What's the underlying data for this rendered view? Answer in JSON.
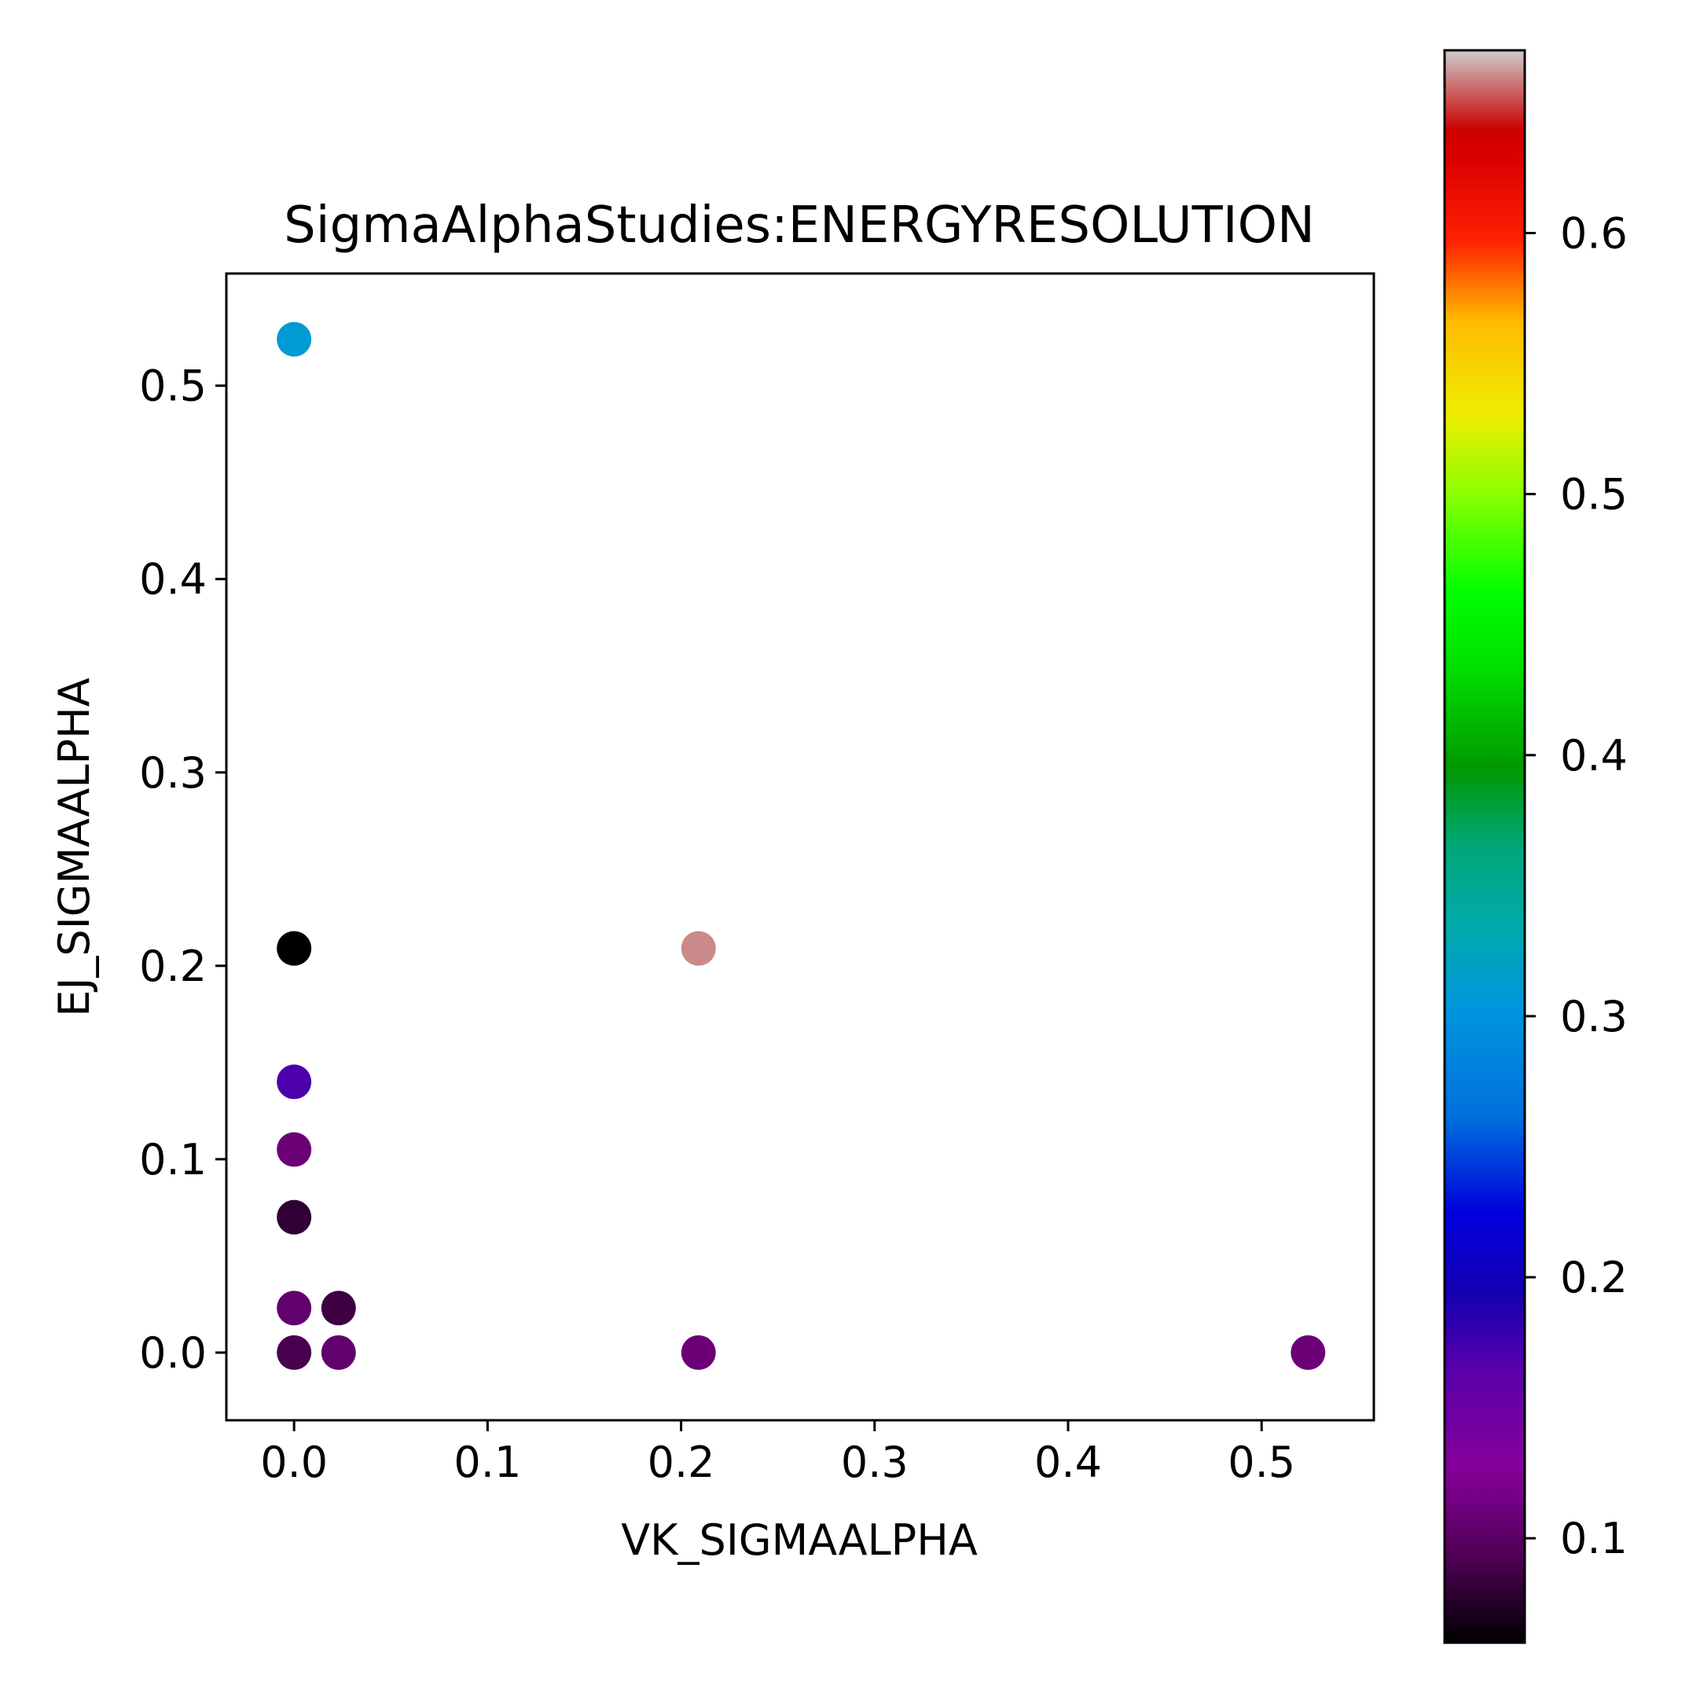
{
  "chart_data": {
    "type": "scatter",
    "title": "SigmaAlphaStudies:ENERGYRESOLUTION",
    "xlabel": "VK_SIGMAALPHA",
    "ylabel": "EJ_SIGMAALPHA",
    "xlim": [
      -0.035,
      0.558
    ],
    "ylim": [
      -0.035,
      0.558
    ],
    "xticks": [
      0.0,
      0.1,
      0.2,
      0.3,
      0.4,
      0.5
    ],
    "xtick_labels": [
      "0.0",
      "0.1",
      "0.2",
      "0.3",
      "0.4",
      "0.5"
    ],
    "yticks": [
      0.0,
      0.1,
      0.2,
      0.3,
      0.4,
      0.5
    ],
    "ytick_labels": [
      "0.0",
      "0.1",
      "0.2",
      "0.3",
      "0.4",
      "0.5"
    ],
    "grid": false,
    "colormap": "nipy_spectral",
    "colorbar": {
      "range": [
        0.06,
        0.67
      ],
      "ticks": [
        0.1,
        0.2,
        0.3,
        0.4,
        0.5,
        0.6
      ],
      "tick_labels": [
        "0.1",
        "0.2",
        "0.3",
        "0.4",
        "0.5",
        "0.6"
      ]
    },
    "points": [
      {
        "x": 0.0,
        "y": 0.524,
        "c": 0.31
      },
      {
        "x": 0.0,
        "y": 0.209,
        "c": 0.06
      },
      {
        "x": 0.209,
        "y": 0.209,
        "c": 0.66
      },
      {
        "x": 0.0,
        "y": 0.14,
        "c": 0.17
      },
      {
        "x": 0.0,
        "y": 0.105,
        "c": 0.11
      },
      {
        "x": 0.0,
        "y": 0.07,
        "c": 0.08
      },
      {
        "x": 0.0,
        "y": 0.023,
        "c": 0.105
      },
      {
        "x": 0.023,
        "y": 0.023,
        "c": 0.085
      },
      {
        "x": 0.0,
        "y": 0.0,
        "c": 0.09
      },
      {
        "x": 0.023,
        "y": 0.0,
        "c": 0.105
      },
      {
        "x": 0.209,
        "y": 0.0,
        "c": 0.11
      },
      {
        "x": 0.524,
        "y": 0.0,
        "c": 0.11
      }
    ]
  }
}
